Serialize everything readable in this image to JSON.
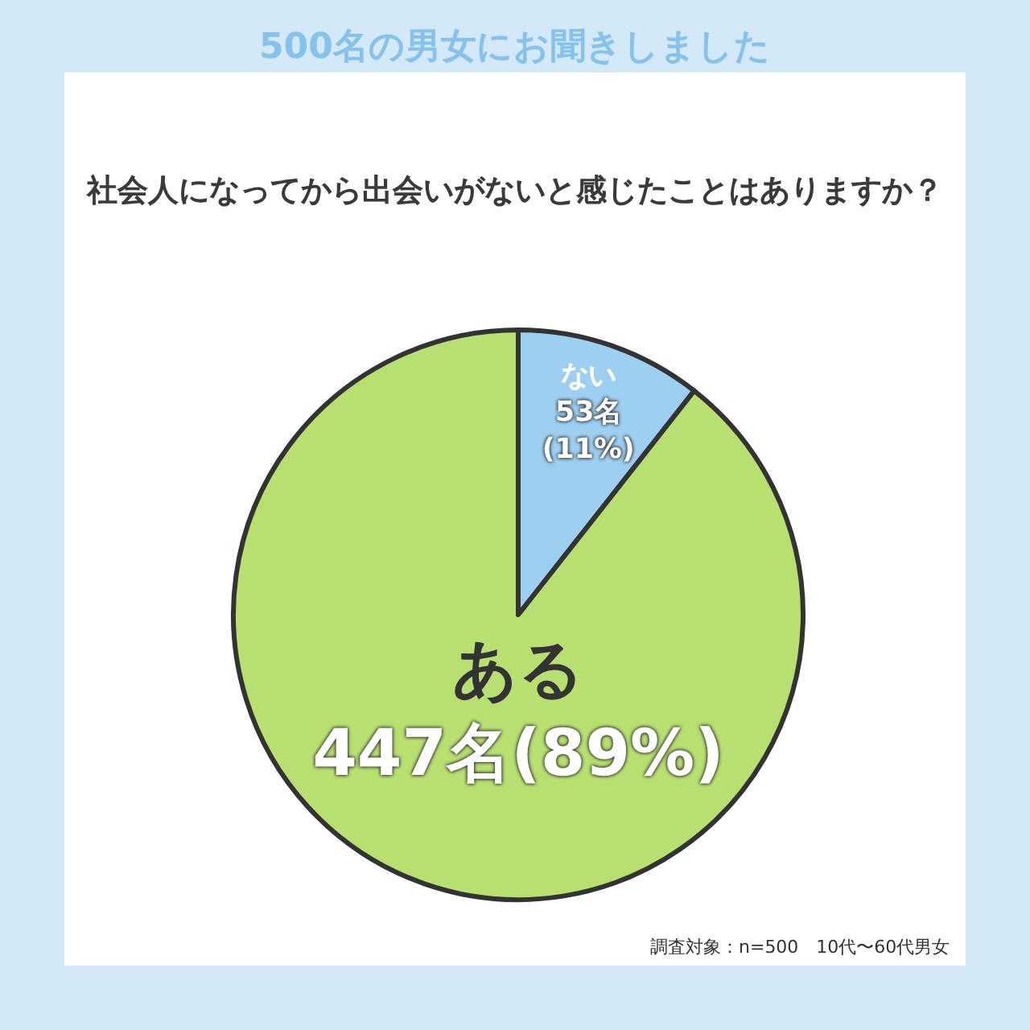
{
  "chart_data": {
    "type": "pie",
    "title": "社会人になってから出会いがないと感じたことはありますか？",
    "subtitle": "500名の男女にお聞きしました",
    "categories": [
      "ない",
      "ある"
    ],
    "values": [
      53,
      447
    ],
    "value_labels": [
      "53名\n(11%)",
      "447名(89%)"
    ],
    "colors": [
      "#9dcff0",
      "#b7e070"
    ],
    "annotations": [
      "調査対象：n=500　10代〜60代男女"
    ]
  }
}
